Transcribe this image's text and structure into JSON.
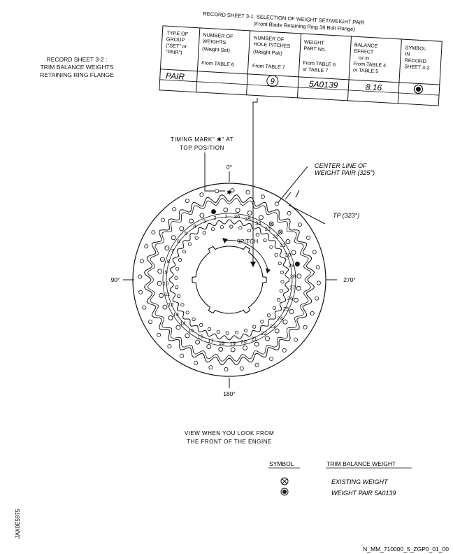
{
  "record_sheet_31": {
    "title": "RECORD SHEET 3-1. SELECTION OF WEIGHT SET/WEIGHT PAIR",
    "subtitle": "(Front Blade Retaining Ring 36 Bolt Flange)",
    "columns": [
      {
        "l1": "TYPE OF",
        "l2": "GROUP",
        "l3": "(\"SET\" or",
        "l4": "\"PAIR\")",
        "l5": ""
      },
      {
        "l1": "NUMBER OF",
        "l2": "WEIGHTS",
        "l3": "(Weight Set)",
        "l4": "",
        "l5": "From TABLE 6"
      },
      {
        "l1": "NUMBER OF",
        "l2": "HOLE PITCHES",
        "l3": "(Weight Pair)",
        "l4": "",
        "l5": "From TABLE 7"
      },
      {
        "l1": "WEIGHT",
        "l2": "PART No.",
        "l3": "",
        "l4": "From TABLE 6",
        "l5": "or TABLE 7"
      },
      {
        "l1": "BALANCE",
        "l2": "EFFECT",
        "l3": "oz.in",
        "l4": "From TABLE 4",
        "l5": "or TABLE 5"
      },
      {
        "l1": "SYMBOL",
        "l2": "IN",
        "l3": "RECORD",
        "l4": "SHEET 3-2",
        "l5": ""
      }
    ],
    "row": {
      "type": "PAIR",
      "weights": "",
      "pitches": "9",
      "part_no": "5A0139",
      "balance": "8.16"
    }
  },
  "record_sheet_32": {
    "line1": "RECORD SHEET 3-2 :",
    "line2": "TRIM BALANCE WEIGHTS",
    "line3": "RETAINING RING FLANGE"
  },
  "annotations": {
    "timing_mark_l1": "TIMING MARK\" ✱\" AT",
    "timing_mark_l2": "TOP POSITION",
    "center_line_l1": "CENTER LINE OF",
    "center_line_l2": "WEIGHT PAIR (325°)",
    "tp": "TP (323°)",
    "deg0": "0°",
    "deg90": "90°",
    "deg180": "180°",
    "deg270": "270°",
    "pitch": "9PITCH",
    "star": "✱"
  },
  "holes": [
    "1",
    "2",
    "3",
    "4",
    "5",
    "6",
    "7",
    "8",
    "9",
    "10",
    "11",
    "12",
    "13",
    "14",
    "15",
    "16",
    "17",
    "18",
    "19",
    "20",
    "21",
    "22",
    "23",
    "24",
    "25",
    "26",
    "27",
    "28",
    "29",
    "30",
    "31",
    "32",
    "33",
    "34",
    "35",
    "36"
  ],
  "view_caption": {
    "l1": "VIEW WHEN YOU LOOK FROM",
    "l2": "THE FRONT OF THE ENGINE"
  },
  "legend": {
    "symbol_header": "SYMBOL",
    "weight_header": "TRIM BALANCE WEIGHT",
    "existing": "EXISTING WEIGHT",
    "pair": "WEIGHT PAIR 5A0139"
  },
  "side_code": "JAX0E5975",
  "figure_ref": "N_MM_710000_5_ZGP0_01_00"
}
